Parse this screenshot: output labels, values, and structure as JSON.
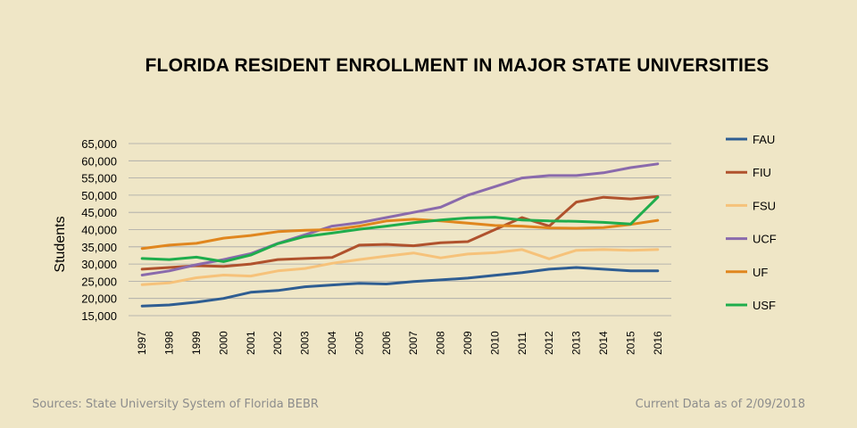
{
  "chart_data": {
    "type": "line",
    "title": "FLORIDA RESIDENT ENROLLMENT IN MAJOR STATE UNIVERSITIES",
    "xlabel": "",
    "ylabel": "Students",
    "ylim": [
      15000,
      65000
    ],
    "yticks": [
      "15,000",
      "20,000",
      "25,000",
      "30,000",
      "35,000",
      "40,000",
      "45,000",
      "50,000",
      "55,000",
      "60,000",
      "65,000"
    ],
    "ytick_values": [
      15000,
      20000,
      25000,
      30000,
      35000,
      40000,
      45000,
      50000,
      55000,
      60000,
      65000
    ],
    "grid": true,
    "legend": "right",
    "x": [
      "1997",
      "1998",
      "1999",
      "2000",
      "2001",
      "2002",
      "2003",
      "2004",
      "2005",
      "2006",
      "2007",
      "2008",
      "2009",
      "2010",
      "2011",
      "2012",
      "2013",
      "2014",
      "2015",
      "2016"
    ],
    "series": [
      {
        "name": "FAU",
        "color": "#2e5d92",
        "values": [
          17800,
          18100,
          18900,
          20000,
          21800,
          22300,
          23400,
          23900,
          24400,
          24200,
          24900,
          25400,
          25900,
          26700,
          27500,
          28500,
          29000,
          28500,
          28000,
          28000
        ]
      },
      {
        "name": "FIU",
        "color": "#b0522d",
        "values": [
          28500,
          29000,
          29500,
          29300,
          30000,
          31300,
          31600,
          31900,
          35500,
          35700,
          35300,
          36200,
          36500,
          40000,
          43500,
          41000,
          48000,
          49400,
          48900,
          49600
        ]
      },
      {
        "name": "FSU",
        "color": "#f6c27a",
        "values": [
          24000,
          24500,
          26000,
          26800,
          26500,
          28000,
          28700,
          30200,
          31300,
          32300,
          33200,
          31800,
          32900,
          33300,
          34200,
          31500,
          34000,
          34200,
          34000,
          34200
        ]
      },
      {
        "name": "UCF",
        "color": "#8a6aac",
        "values": [
          26800,
          28000,
          29800,
          31300,
          33000,
          36000,
          38500,
          41000,
          42000,
          43500,
          45000,
          46500,
          50000,
          52500,
          55000,
          55700,
          55700,
          56500,
          58000,
          59100
        ]
      },
      {
        "name": "UF",
        "color": "#e0861e",
        "values": [
          34500,
          35500,
          36000,
          37500,
          38300,
          39400,
          39800,
          40000,
          41000,
          42500,
          43000,
          42500,
          41900,
          41200,
          41000,
          40500,
          40400,
          40600,
          41500,
          42700
        ]
      },
      {
        "name": "USF",
        "color": "#1fad4c",
        "values": [
          31600,
          31300,
          32000,
          30700,
          32600,
          35900,
          38000,
          39000,
          40100,
          41000,
          42000,
          42800,
          43400,
          43600,
          42800,
          42500,
          42400,
          42100,
          41600,
          49400
        ]
      }
    ]
  },
  "footer": {
    "source": "Sources: State University System of Florida BEBR",
    "date": "Current Data as of 2/09/2018"
  }
}
